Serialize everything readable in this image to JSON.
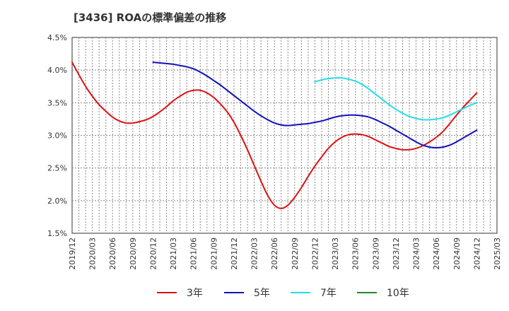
{
  "chart_data": {
    "type": "line",
    "title": "[3436]  ROAの標準偏差の推移",
    "xlabel": "",
    "ylabel": "",
    "ylim": [
      1.5,
      4.5
    ],
    "y_ticks": [
      "1.5%",
      "2.0%",
      "2.5%",
      "3.0%",
      "3.5%",
      "4.0%",
      "4.5%"
    ],
    "x_ticks": [
      "2019/12",
      "2020/03",
      "2020/06",
      "2020/09",
      "2020/12",
      "2021/03",
      "2021/06",
      "2021/09",
      "2021/12",
      "2022/03",
      "2022/06",
      "2022/09",
      "2022/12",
      "2023/03",
      "2023/06",
      "2023/09",
      "2023/12",
      "2024/03",
      "2024/06",
      "2024/09",
      "2024/12",
      "2025/03"
    ],
    "grid": true,
    "legend_position": "bottom",
    "series": [
      {
        "name": "3年",
        "color": "#dd1111",
        "points": [
          [
            "2019/12",
            4.12
          ],
          [
            "2020/01",
            3.93
          ],
          [
            "2020/02",
            3.75
          ],
          [
            "2020/03",
            3.6
          ],
          [
            "2020/04",
            3.47
          ],
          [
            "2020/05",
            3.37
          ],
          [
            "2020/06",
            3.28
          ],
          [
            "2020/07",
            3.22
          ],
          [
            "2020/08",
            3.19
          ],
          [
            "2020/09",
            3.19
          ],
          [
            "2020/10",
            3.21
          ],
          [
            "2020/11",
            3.24
          ],
          [
            "2020/12",
            3.29
          ],
          [
            "2021/01",
            3.36
          ],
          [
            "2021/02",
            3.44
          ],
          [
            "2021/03",
            3.53
          ],
          [
            "2021/04",
            3.6
          ],
          [
            "2021/05",
            3.66
          ],
          [
            "2021/06",
            3.69
          ],
          [
            "2021/07",
            3.69
          ],
          [
            "2021/08",
            3.65
          ],
          [
            "2021/09",
            3.58
          ],
          [
            "2021/10",
            3.48
          ],
          [
            "2021/11",
            3.36
          ],
          [
            "2021/12",
            3.2
          ],
          [
            "2022/01",
            3.0
          ],
          [
            "2022/02",
            2.78
          ],
          [
            "2022/03",
            2.54
          ],
          [
            "2022/04",
            2.3
          ],
          [
            "2022/05",
            2.08
          ],
          [
            "2022/06",
            1.93
          ],
          [
            "2022/07",
            1.88
          ],
          [
            "2022/08",
            1.93
          ],
          [
            "2022/09",
            2.05
          ],
          [
            "2022/10",
            2.2
          ],
          [
            "2022/11",
            2.37
          ],
          [
            "2022/12",
            2.53
          ],
          [
            "2023/01",
            2.67
          ],
          [
            "2023/02",
            2.8
          ],
          [
            "2023/03",
            2.9
          ],
          [
            "2023/04",
            2.97
          ],
          [
            "2023/05",
            3.01
          ],
          [
            "2023/06",
            3.02
          ],
          [
            "2023/07",
            3.01
          ],
          [
            "2023/08",
            2.98
          ],
          [
            "2023/09",
            2.93
          ],
          [
            "2023/10",
            2.88
          ],
          [
            "2023/11",
            2.83
          ],
          [
            "2023/12",
            2.8
          ],
          [
            "2024/01",
            2.78
          ],
          [
            "2024/02",
            2.78
          ],
          [
            "2024/03",
            2.8
          ],
          [
            "2024/04",
            2.84
          ],
          [
            "2024/05",
            2.9
          ],
          [
            "2024/06",
            2.97
          ],
          [
            "2024/07",
            3.06
          ],
          [
            "2024/08",
            3.18
          ],
          [
            "2024/09",
            3.31
          ],
          [
            "2024/10",
            3.43
          ],
          [
            "2024/11",
            3.54
          ],
          [
            "2024/12",
            3.65
          ]
        ]
      },
      {
        "name": "5年",
        "color": "#1111bb",
        "points": [
          [
            "2020/12",
            4.12
          ],
          [
            "2021/01",
            4.11
          ],
          [
            "2021/02",
            4.1
          ],
          [
            "2021/03",
            4.09
          ],
          [
            "2021/04",
            4.07
          ],
          [
            "2021/05",
            4.05
          ],
          [
            "2021/06",
            4.02
          ],
          [
            "2021/07",
            3.97
          ],
          [
            "2021/08",
            3.91
          ],
          [
            "2021/09",
            3.84
          ],
          [
            "2021/10",
            3.77
          ],
          [
            "2021/11",
            3.69
          ],
          [
            "2021/12",
            3.61
          ],
          [
            "2022/01",
            3.53
          ],
          [
            "2022/02",
            3.45
          ],
          [
            "2022/03",
            3.37
          ],
          [
            "2022/04",
            3.3
          ],
          [
            "2022/05",
            3.24
          ],
          [
            "2022/06",
            3.19
          ],
          [
            "2022/07",
            3.16
          ],
          [
            "2022/08",
            3.15
          ],
          [
            "2022/09",
            3.16
          ],
          [
            "2022/10",
            3.17
          ],
          [
            "2022/11",
            3.18
          ],
          [
            "2022/12",
            3.2
          ],
          [
            "2023/01",
            3.22
          ],
          [
            "2023/02",
            3.25
          ],
          [
            "2023/03",
            3.28
          ],
          [
            "2023/04",
            3.3
          ],
          [
            "2023/05",
            3.31
          ],
          [
            "2023/06",
            3.31
          ],
          [
            "2023/07",
            3.3
          ],
          [
            "2023/08",
            3.28
          ],
          [
            "2023/09",
            3.24
          ],
          [
            "2023/10",
            3.19
          ],
          [
            "2023/11",
            3.14
          ],
          [
            "2023/12",
            3.08
          ],
          [
            "2024/01",
            3.02
          ],
          [
            "2024/02",
            2.96
          ],
          [
            "2024/03",
            2.9
          ],
          [
            "2024/04",
            2.85
          ],
          [
            "2024/05",
            2.82
          ],
          [
            "2024/06",
            2.81
          ],
          [
            "2024/07",
            2.82
          ],
          [
            "2024/08",
            2.85
          ],
          [
            "2024/09",
            2.9
          ],
          [
            "2024/10",
            2.96
          ],
          [
            "2024/11",
            3.02
          ],
          [
            "2024/12",
            3.08
          ]
        ]
      },
      {
        "name": "7年",
        "color": "#22ddee",
        "points": [
          [
            "2022/12",
            3.82
          ],
          [
            "2023/01",
            3.85
          ],
          [
            "2023/02",
            3.87
          ],
          [
            "2023/03",
            3.88
          ],
          [
            "2023/04",
            3.88
          ],
          [
            "2023/05",
            3.86
          ],
          [
            "2023/06",
            3.83
          ],
          [
            "2023/07",
            3.78
          ],
          [
            "2023/08",
            3.71
          ],
          [
            "2023/09",
            3.63
          ],
          [
            "2023/10",
            3.55
          ],
          [
            "2023/11",
            3.47
          ],
          [
            "2023/12",
            3.4
          ],
          [
            "2024/01",
            3.34
          ],
          [
            "2024/02",
            3.29
          ],
          [
            "2024/03",
            3.26
          ],
          [
            "2024/04",
            3.24
          ],
          [
            "2024/05",
            3.24
          ],
          [
            "2024/06",
            3.25
          ],
          [
            "2024/07",
            3.27
          ],
          [
            "2024/08",
            3.31
          ],
          [
            "2024/09",
            3.36
          ],
          [
            "2024/10",
            3.41
          ],
          [
            "2024/11",
            3.46
          ],
          [
            "2024/12",
            3.5
          ]
        ]
      },
      {
        "name": "10年",
        "color": "#228822",
        "points": []
      }
    ]
  }
}
